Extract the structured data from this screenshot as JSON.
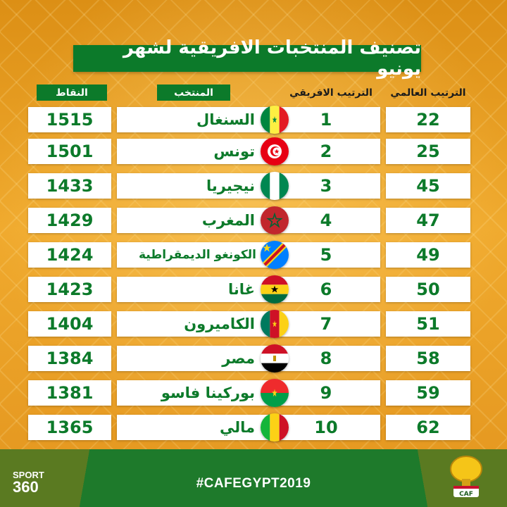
{
  "title": "تصنيف المنتخبات الافريقية لشهر يونيو",
  "headers": {
    "points": "النقاط",
    "team": "المنتخب",
    "african_rank": "الترتيب الافريقي",
    "world_rank": "الترتيب العالمي"
  },
  "rows": [
    {
      "points": "1515",
      "team": "السنغال",
      "african_rank": "1",
      "world_rank": "22",
      "flag": "senegal-flag"
    },
    {
      "points": "1501",
      "team": "تونس",
      "african_rank": "2",
      "world_rank": "25",
      "flag": "tunisia-flag"
    },
    {
      "points": "1433",
      "team": "نيجيريا",
      "african_rank": "3",
      "world_rank": "45",
      "flag": "nigeria-flag"
    },
    {
      "points": "1429",
      "team": "المغرب",
      "african_rank": "4",
      "world_rank": "47",
      "flag": "morocco-flag"
    },
    {
      "points": "1424",
      "team": "الكونغو الديمقراطية",
      "african_rank": "5",
      "world_rank": "49",
      "flag": "dr-congo-flag"
    },
    {
      "points": "1423",
      "team": "غانا",
      "african_rank": "6",
      "world_rank": "50",
      "flag": "ghana-flag"
    },
    {
      "points": "1404",
      "team": "الكاميرون",
      "african_rank": "7",
      "world_rank": "51",
      "flag": "cameroon-flag"
    },
    {
      "points": "1384",
      "team": "مصر",
      "african_rank": "8",
      "world_rank": "58",
      "flag": "egypt-flag"
    },
    {
      "points": "1381",
      "team": "بوركينا فاسو",
      "african_rank": "9",
      "world_rank": "59",
      "flag": "burkina-faso-flag"
    },
    {
      "points": "1365",
      "team": "مالي",
      "african_rank": "10",
      "world_rank": "62",
      "flag": "mali-flag"
    }
  ],
  "footer": {
    "hashtag": "#CAFEGYPT2019",
    "sport_brand_top": "SPORT",
    "sport_brand_bottom": "360",
    "caf_logo_text": "CAF"
  },
  "colors": {
    "green": "#0c7a2a",
    "orange": "#e59a1c"
  }
}
